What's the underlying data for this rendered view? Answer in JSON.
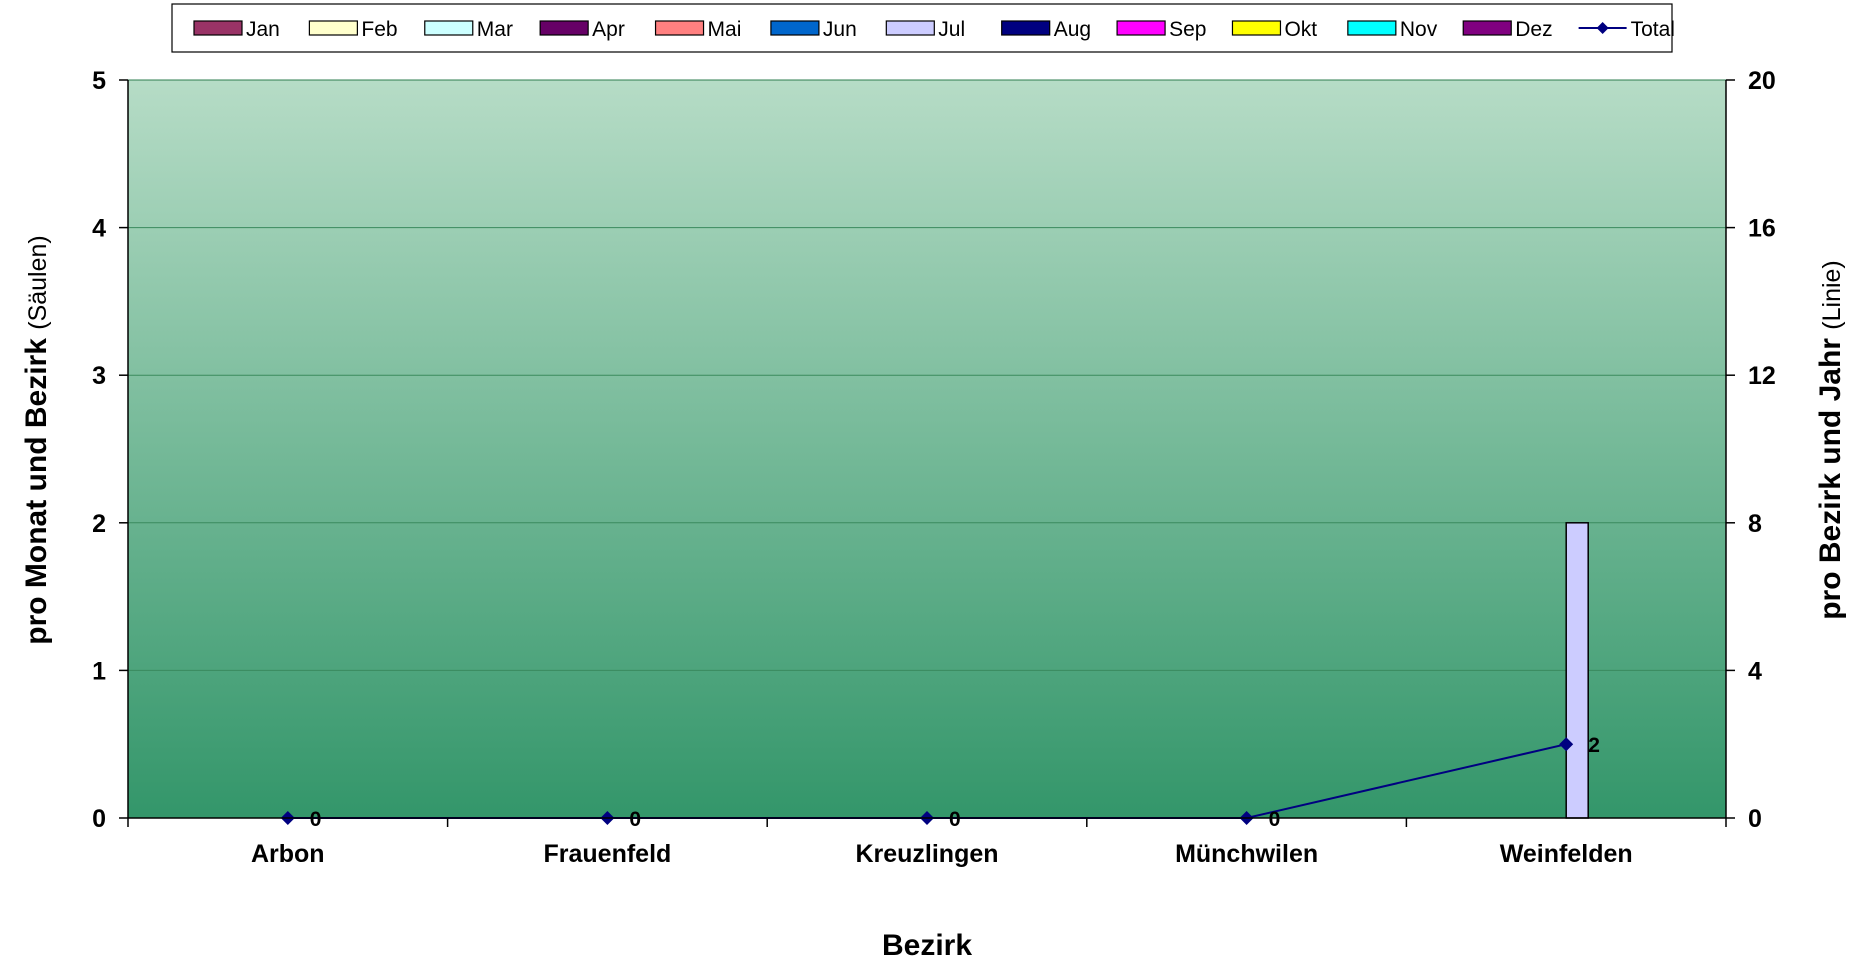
{
  "chart_data": {
    "type": "bar",
    "categories": [
      "Arbon",
      "Frauenfeld",
      "Kreuzlingen",
      "Münchwilen",
      "Weinfelden"
    ],
    "series": [
      {
        "name": "Jan",
        "color": "#993366",
        "axis": "left",
        "values": [
          0,
          0,
          0,
          0,
          0
        ]
      },
      {
        "name": "Feb",
        "color": "#FFFFCC",
        "axis": "left",
        "values": [
          0,
          0,
          0,
          0,
          0
        ]
      },
      {
        "name": "Mar",
        "color": "#CCFFFF",
        "axis": "left",
        "values": [
          0,
          0,
          0,
          0,
          0
        ]
      },
      {
        "name": "Apr",
        "color": "#660066",
        "axis": "left",
        "values": [
          0,
          0,
          0,
          0,
          0
        ]
      },
      {
        "name": "Mai",
        "color": "#FF8080",
        "axis": "left",
        "values": [
          0,
          0,
          0,
          0,
          0
        ]
      },
      {
        "name": "Jun",
        "color": "#0066CC",
        "axis": "left",
        "values": [
          0,
          0,
          0,
          0,
          0
        ]
      },
      {
        "name": "Jul",
        "color": "#CCCCFF",
        "axis": "left",
        "values": [
          0,
          0,
          0,
          0,
          2
        ]
      },
      {
        "name": "Aug",
        "color": "#000080",
        "axis": "left",
        "values": [
          0,
          0,
          0,
          0,
          0
        ]
      },
      {
        "name": "Sep",
        "color": "#FF00FF",
        "axis": "left",
        "values": [
          0,
          0,
          0,
          0,
          0
        ]
      },
      {
        "name": "Okt",
        "color": "#FFFF00",
        "axis": "left",
        "values": [
          0,
          0,
          0,
          0,
          0
        ]
      },
      {
        "name": "Nov",
        "color": "#00FFFF",
        "axis": "left",
        "values": [
          0,
          0,
          0,
          0,
          0
        ]
      },
      {
        "name": "Dez",
        "color": "#800080",
        "axis": "left",
        "values": [
          0,
          0,
          0,
          0,
          0
        ]
      }
    ],
    "line_series": {
      "name": "Total",
      "color": "#000080",
      "axis": "right",
      "values": [
        0,
        0,
        0,
        0,
        2
      ],
      "data_labels": [
        "0",
        "0",
        "0",
        "0",
        "2"
      ]
    },
    "xlabel": "Bezirk",
    "ylabel_left": {
      "main": "pro Monat und Bezirk",
      "sub": "(Säulen)"
    },
    "ylabel_right": {
      "main": "pro Bezirk und Jahr",
      "sub": "(Linie)"
    },
    "ylim_left": [
      0,
      5
    ],
    "yticks_left": [
      "0",
      "1",
      "2",
      "3",
      "4",
      "5"
    ],
    "ylim_right": [
      0,
      20
    ],
    "yticks_right": [
      "0",
      "4",
      "8",
      "12",
      "16",
      "20"
    ],
    "grid": true,
    "legend_position": "top",
    "plot_background": {
      "top": "#B6DCC6",
      "bottom": "#33966A"
    }
  }
}
